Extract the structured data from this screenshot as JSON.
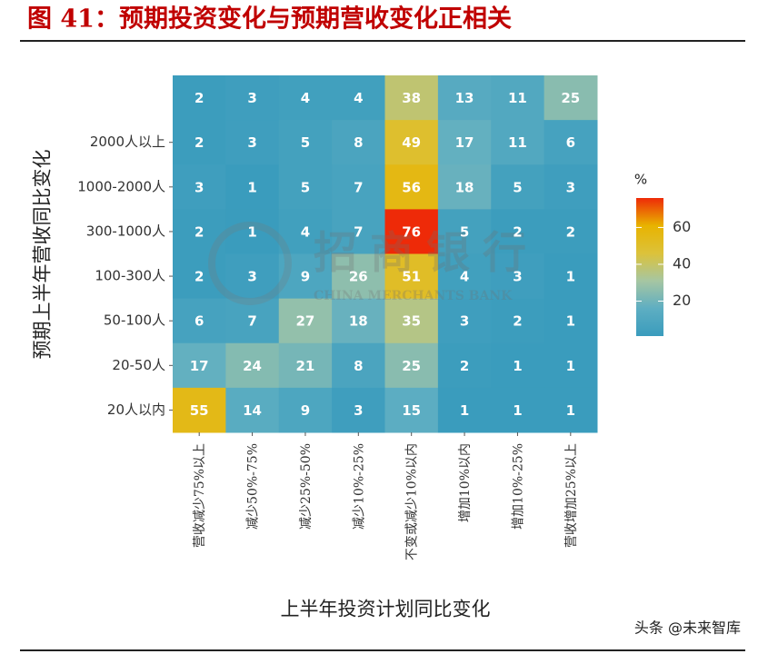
{
  "chart_data": {
    "type": "heatmap",
    "title": "图 41：预期投资变化与预期营收变化正相关",
    "x_label": "上半年投资计划同比变化",
    "y_label": "预期上半年营收同比变化",
    "x_categories": [
      "营收减少75%以上",
      "减少50%-75%",
      "减少25%-50%",
      "减少10%-25%",
      "不变或减少10%以内",
      "增加10%以内",
      "增加10%-25%",
      "营收增加25%以上"
    ],
    "y_categories": [
      null,
      "2000人以上",
      "1000-2000人",
      "300-1000人",
      "100-300人",
      "50-100人",
      "20-50人",
      "20人以内"
    ],
    "z": [
      [
        2,
        3,
        4,
        4,
        38,
        13,
        11,
        25
      ],
      [
        2,
        3,
        5,
        8,
        49,
        17,
        11,
        6
      ],
      [
        3,
        1,
        5,
        7,
        56,
        18,
        5,
        3
      ],
      [
        2,
        1,
        4,
        7,
        76,
        5,
        2,
        2
      ],
      [
        2,
        3,
        9,
        26,
        51,
        4,
        3,
        1
      ],
      [
        6,
        7,
        27,
        18,
        35,
        3,
        2,
        1
      ],
      [
        17,
        24,
        21,
        8,
        25,
        2,
        1,
        1
      ],
      [
        55,
        14,
        9,
        3,
        15,
        1,
        1,
        1
      ]
    ],
    "zlim": [
      1,
      76
    ],
    "colorscale": [
      "#3a9cbd",
      "#5eaec2",
      "#a6c6a2",
      "#dcc23a",
      "#e8b300",
      "#ee2a08"
    ],
    "legend_title": "%",
    "legend_ticks": [
      20,
      40,
      60
    ],
    "watermark": "招商银行",
    "watermark_sub": "CHINA MERCHANTS BANK",
    "source_tag": "头条 @未来智库"
  }
}
